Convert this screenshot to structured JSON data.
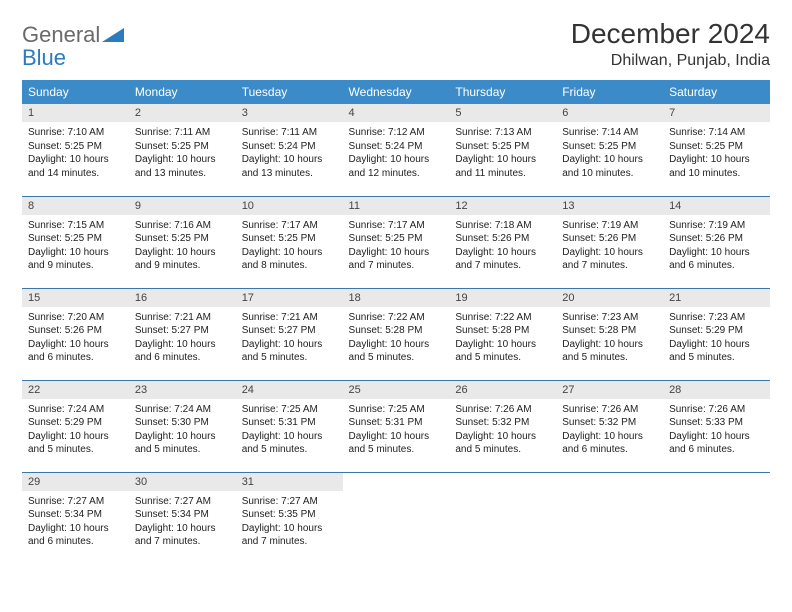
{
  "brand": {
    "general": "General",
    "blue": "Blue"
  },
  "title": "December 2024",
  "location": "Dhilwan, Punjab, India",
  "colors": {
    "header_bg": "#3b8bc9",
    "header_text": "#ffffff",
    "daynum_bg": "#e9e9e9",
    "row_border": "#3b78a8",
    "logo_blue": "#2b7bbf",
    "logo_gray": "#6a6a6a"
  },
  "weekdays": [
    "Sunday",
    "Monday",
    "Tuesday",
    "Wednesday",
    "Thursday",
    "Friday",
    "Saturday"
  ],
  "days": [
    {
      "n": 1,
      "sunrise": "7:10 AM",
      "sunset": "5:25 PM",
      "daylight": "10 hours and 14 minutes."
    },
    {
      "n": 2,
      "sunrise": "7:11 AM",
      "sunset": "5:25 PM",
      "daylight": "10 hours and 13 minutes."
    },
    {
      "n": 3,
      "sunrise": "7:11 AM",
      "sunset": "5:24 PM",
      "daylight": "10 hours and 13 minutes."
    },
    {
      "n": 4,
      "sunrise": "7:12 AM",
      "sunset": "5:24 PM",
      "daylight": "10 hours and 12 minutes."
    },
    {
      "n": 5,
      "sunrise": "7:13 AM",
      "sunset": "5:25 PM",
      "daylight": "10 hours and 11 minutes."
    },
    {
      "n": 6,
      "sunrise": "7:14 AM",
      "sunset": "5:25 PM",
      "daylight": "10 hours and 10 minutes."
    },
    {
      "n": 7,
      "sunrise": "7:14 AM",
      "sunset": "5:25 PM",
      "daylight": "10 hours and 10 minutes."
    },
    {
      "n": 8,
      "sunrise": "7:15 AM",
      "sunset": "5:25 PM",
      "daylight": "10 hours and 9 minutes."
    },
    {
      "n": 9,
      "sunrise": "7:16 AM",
      "sunset": "5:25 PM",
      "daylight": "10 hours and 9 minutes."
    },
    {
      "n": 10,
      "sunrise": "7:17 AM",
      "sunset": "5:25 PM",
      "daylight": "10 hours and 8 minutes."
    },
    {
      "n": 11,
      "sunrise": "7:17 AM",
      "sunset": "5:25 PM",
      "daylight": "10 hours and 7 minutes."
    },
    {
      "n": 12,
      "sunrise": "7:18 AM",
      "sunset": "5:26 PM",
      "daylight": "10 hours and 7 minutes."
    },
    {
      "n": 13,
      "sunrise": "7:19 AM",
      "sunset": "5:26 PM",
      "daylight": "10 hours and 7 minutes."
    },
    {
      "n": 14,
      "sunrise": "7:19 AM",
      "sunset": "5:26 PM",
      "daylight": "10 hours and 6 minutes."
    },
    {
      "n": 15,
      "sunrise": "7:20 AM",
      "sunset": "5:26 PM",
      "daylight": "10 hours and 6 minutes."
    },
    {
      "n": 16,
      "sunrise": "7:21 AM",
      "sunset": "5:27 PM",
      "daylight": "10 hours and 6 minutes."
    },
    {
      "n": 17,
      "sunrise": "7:21 AM",
      "sunset": "5:27 PM",
      "daylight": "10 hours and 5 minutes."
    },
    {
      "n": 18,
      "sunrise": "7:22 AM",
      "sunset": "5:28 PM",
      "daylight": "10 hours and 5 minutes."
    },
    {
      "n": 19,
      "sunrise": "7:22 AM",
      "sunset": "5:28 PM",
      "daylight": "10 hours and 5 minutes."
    },
    {
      "n": 20,
      "sunrise": "7:23 AM",
      "sunset": "5:28 PM",
      "daylight": "10 hours and 5 minutes."
    },
    {
      "n": 21,
      "sunrise": "7:23 AM",
      "sunset": "5:29 PM",
      "daylight": "10 hours and 5 minutes."
    },
    {
      "n": 22,
      "sunrise": "7:24 AM",
      "sunset": "5:29 PM",
      "daylight": "10 hours and 5 minutes."
    },
    {
      "n": 23,
      "sunrise": "7:24 AM",
      "sunset": "5:30 PM",
      "daylight": "10 hours and 5 minutes."
    },
    {
      "n": 24,
      "sunrise": "7:25 AM",
      "sunset": "5:31 PM",
      "daylight": "10 hours and 5 minutes."
    },
    {
      "n": 25,
      "sunrise": "7:25 AM",
      "sunset": "5:31 PM",
      "daylight": "10 hours and 5 minutes."
    },
    {
      "n": 26,
      "sunrise": "7:26 AM",
      "sunset": "5:32 PM",
      "daylight": "10 hours and 5 minutes."
    },
    {
      "n": 27,
      "sunrise": "7:26 AM",
      "sunset": "5:32 PM",
      "daylight": "10 hours and 6 minutes."
    },
    {
      "n": 28,
      "sunrise": "7:26 AM",
      "sunset": "5:33 PM",
      "daylight": "10 hours and 6 minutes."
    },
    {
      "n": 29,
      "sunrise": "7:27 AM",
      "sunset": "5:34 PM",
      "daylight": "10 hours and 6 minutes."
    },
    {
      "n": 30,
      "sunrise": "7:27 AM",
      "sunset": "5:34 PM",
      "daylight": "10 hours and 7 minutes."
    },
    {
      "n": 31,
      "sunrise": "7:27 AM",
      "sunset": "5:35 PM",
      "daylight": "10 hours and 7 minutes."
    }
  ],
  "labels": {
    "sunrise": "Sunrise:",
    "sunset": "Sunset:",
    "daylight": "Daylight:"
  }
}
